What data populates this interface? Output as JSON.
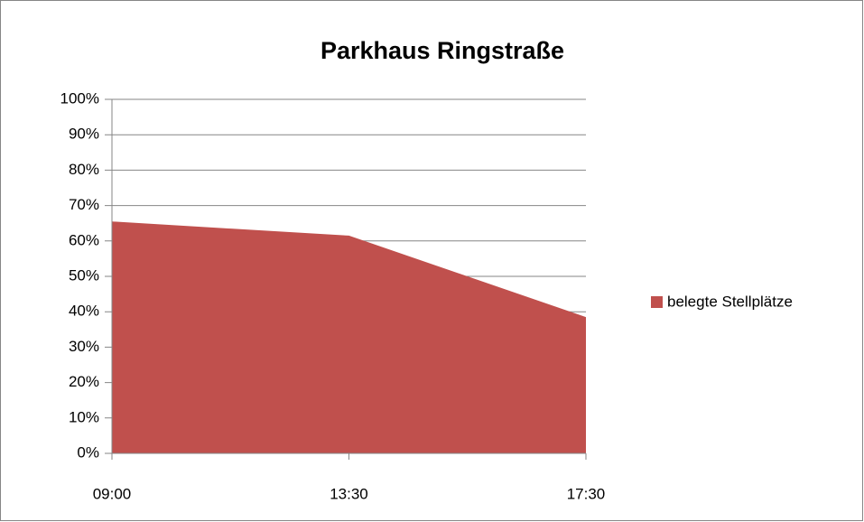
{
  "chart_data": {
    "type": "area",
    "title": "Parkhaus Ringstraße",
    "categories": [
      "09:00",
      "13:30",
      "17:30"
    ],
    "series": [
      {
        "name": "belegte Stellplätze",
        "color": "#c0504d",
        "values": [
          65.5,
          61.5,
          38.5
        ]
      }
    ],
    "ylim": [
      0,
      100
    ],
    "yticks": [
      {
        "value": 0,
        "label": "0%"
      },
      {
        "value": 10,
        "label": "10%"
      },
      {
        "value": 20,
        "label": "20%"
      },
      {
        "value": 30,
        "label": "30%"
      },
      {
        "value": 40,
        "label": "40%"
      },
      {
        "value": 50,
        "label": "50%"
      },
      {
        "value": 60,
        "label": "60%"
      },
      {
        "value": 70,
        "label": "70%"
      },
      {
        "value": 80,
        "label": "80%"
      },
      {
        "value": 90,
        "label": "90%"
      },
      {
        "value": 100,
        "label": "100%"
      }
    ],
    "grid": true,
    "legend": "right"
  }
}
